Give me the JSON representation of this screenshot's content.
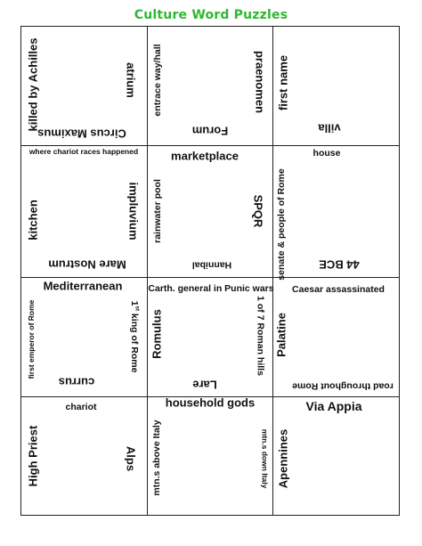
{
  "title": "Culture Word Puzzles",
  "cells": {
    "r1c1": {
      "left": "killed by Achilles",
      "right": "atrium",
      "bottom": "Circus Maximus"
    },
    "r1c2": {
      "left": "entrace way/hall",
      "bottom": "Forum",
      "right": "praenomen"
    },
    "r1c3": {
      "left": "first name",
      "bottom": "villa"
    },
    "r2c1": {
      "top": "where chariot races happened",
      "left": "kitchen",
      "right": "impluvium",
      "bottom": "Mare Nostrum"
    },
    "r2c2": {
      "top": "marketplace",
      "left": "rainwater pool",
      "bottom": "Hannibal",
      "right": "SPQR"
    },
    "r2c3": {
      "top": "house",
      "left": "senate & people of Rome",
      "bottom": "44 BCE"
    },
    "r3c1": {
      "top": "Mediterranean",
      "left": "first emperor of Rome",
      "right_sup": "st",
      "right_num": "1",
      "right_rest": " king of Rome",
      "bottom": "currus"
    },
    "r3c2": {
      "top": "Carth. general in Punic wars",
      "left": "Romulus",
      "bottom": "Lare",
      "right": "1 of 7 Roman hills"
    },
    "r3c3": {
      "top": "Caesar assassinated",
      "left": "Palatine",
      "bottom": "road throughout Rome"
    },
    "r4c1": {
      "top": "chariot",
      "left": "High Priest",
      "right": "Alps"
    },
    "r4c2": {
      "top": "household gods",
      "left": "mtn.s above Italy",
      "right": "mtn.s down Italy"
    },
    "r4c3": {
      "top": "Via Appia",
      "left": "Apennines"
    }
  }
}
